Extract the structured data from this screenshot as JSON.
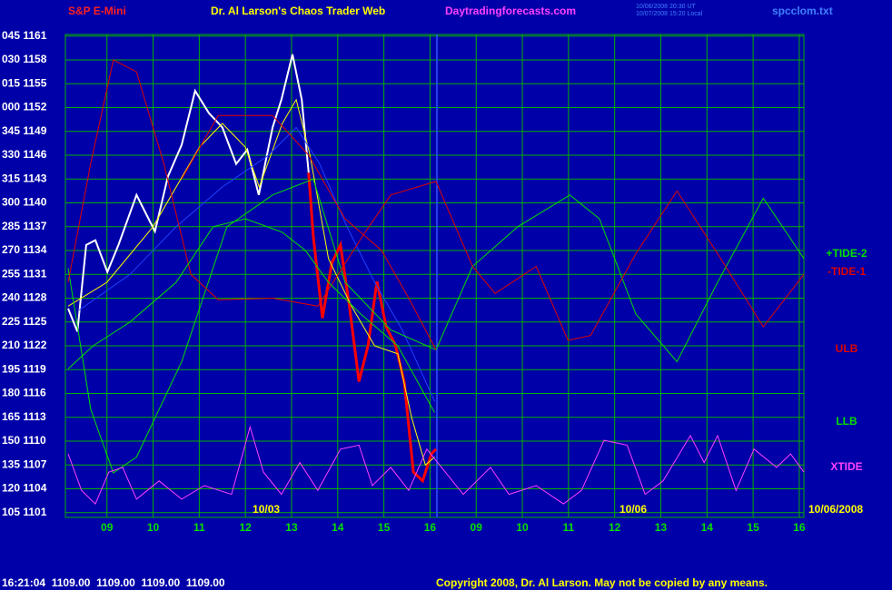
{
  "chart_data": {
    "type": "line",
    "symbol": "S&P E-Mini",
    "title": "Dr. Al Larson's Chaos Trader Web",
    "website": "Daytradingforecasts.com",
    "timestamps": [
      "10/06/2008 20:30 UT",
      "10/07/2008 15:20 Local"
    ],
    "file": "spcclom.txt",
    "status": "16:21:04  1109.00  1109.00  1109.00  1109.00",
    "copyright": "Copyright 2008, Dr. Al Larson. May not be copied by any means.",
    "date_labels": [
      {
        "text": "10/03",
        "x": 3.45
      },
      {
        "text": "10/06",
        "x": 11.4
      }
    ],
    "end_date": "10/06/2008",
    "grid": true,
    "grid_color": "#00b000",
    "background": "#0000a8",
    "xlim": [
      -0.9,
      15.1
    ],
    "ylim": [
      1100.4,
      1161.2
    ],
    "xticks": [
      {
        "value": 0,
        "label": "09"
      },
      {
        "value": 1,
        "label": "10"
      },
      {
        "value": 2,
        "label": "11"
      },
      {
        "value": 3,
        "label": "12"
      },
      {
        "value": 4,
        "label": "13"
      },
      {
        "value": 5,
        "label": "14"
      },
      {
        "value": 6,
        "label": "15"
      },
      {
        "value": 7,
        "label": "16"
      },
      {
        "value": 8,
        "label": "09"
      },
      {
        "value": 9,
        "label": "10"
      },
      {
        "value": 10,
        "label": "11"
      },
      {
        "value": 11,
        "label": "12"
      },
      {
        "value": 12,
        "label": "13"
      },
      {
        "value": 13,
        "label": "14"
      },
      {
        "value": 14,
        "label": "15"
      },
      {
        "value": 15,
        "label": "16"
      }
    ],
    "yticks": [
      {
        "value": 1161,
        "label": "045 1161"
      },
      {
        "value": 1158,
        "label": "030 1158"
      },
      {
        "value": 1155,
        "label": "015 1155"
      },
      {
        "value": 1152,
        "label": "000 1152"
      },
      {
        "value": 1149,
        "label": "345 1149"
      },
      {
        "value": 1146,
        "label": "330 1146"
      },
      {
        "value": 1143,
        "label": "315 1143"
      },
      {
        "value": 1140,
        "label": "300 1140"
      },
      {
        "value": 1137,
        "label": "285 1137"
      },
      {
        "value": 1134,
        "label": "270 1134"
      },
      {
        "value": 1131,
        "label": "255 1131"
      },
      {
        "value": 1128,
        "label": "240 1128"
      },
      {
        "value": 1125,
        "label": "225 1125"
      },
      {
        "value": 1122,
        "label": "210 1122"
      },
      {
        "value": 1119,
        "label": "195 1119"
      },
      {
        "value": 1116,
        "label": "180 1116"
      },
      {
        "value": 1113,
        "label": "165 1113"
      },
      {
        "value": 1110,
        "label": "150 1110"
      },
      {
        "value": 1107,
        "label": "135 1107"
      },
      {
        "value": 1104,
        "label": "120 1104"
      },
      {
        "value": 1101,
        "label": "105 1101"
      }
    ],
    "series": [
      {
        "color": "#ffffff",
        "width": 2,
        "x": [
          -0.84,
          -0.64,
          -0.45,
          -0.25,
          0.01,
          0.25,
          0.64,
          1.04,
          1.32,
          1.62,
          1.91,
          2.21,
          2.5,
          2.8,
          3.04,
          3.29,
          3.59,
          3.78,
          4.02,
          4.22,
          4.37
        ],
        "values": [
          1126.7,
          1123.8,
          1134.7,
          1135.3,
          1131.3,
          1134.7,
          1141,
          1136.4,
          1143.3,
          1147.3,
          1154.1,
          1151.3,
          1149.5,
          1144.9,
          1146.7,
          1141,
          1149.5,
          1153,
          1158.7,
          1153,
          1143.8
        ]
      },
      {
        "color": "#ff0000",
        "width": 3,
        "x": [
          4.37,
          4.47,
          4.67,
          4.87,
          5.06,
          5.26,
          5.46,
          5.66,
          5.85,
          6.05,
          6.25,
          6.44,
          6.64,
          6.84,
          7.03,
          7.13
        ],
        "values": [
          1143.8,
          1135.8,
          1125.5,
          1132.4,
          1134.7,
          1126.7,
          1117.5,
          1122.1,
          1130.1,
          1124.4,
          1122.1,
          1117.5,
          1106.1,
          1105,
          1108.4,
          1109
        ]
      },
      {
        "color": "#ffff00",
        "width": 1,
        "x": [
          -0.84,
          0,
          1,
          2,
          2.5,
          3,
          3.3,
          3.8,
          4.1,
          4.4,
          4.8,
          5.3,
          5.8,
          6.3,
          6.6,
          6.9,
          7.1
        ],
        "values": [
          1127,
          1130,
          1137,
          1147,
          1150,
          1147,
          1142,
          1150,
          1153,
          1146,
          1133,
          1127,
          1122,
          1121,
          1113,
          1107,
          1108
        ]
      },
      {
        "color": "#2040ff",
        "width": 1,
        "x": [
          -0.6,
          0.5,
          1.5,
          2.5,
          3.5,
          4.1,
          4.6,
          5.2,
          5.8,
          6.4,
          7.1
        ],
        "values": [
          1126.5,
          1131,
          1137,
          1142,
          1146,
          1149.5,
          1145,
          1137,
          1130,
          1124,
          1115
        ]
      },
      {
        "name": "+TIDE-2",
        "color": "#00e000",
        "width": 1,
        "x": [
          -0.84,
          -0.35,
          0.14,
          0.64,
          1.62,
          2.6,
          3.59,
          4.47,
          5.16,
          6.15,
          7.13,
          7.92,
          8.9,
          10.03,
          10.67,
          11.46,
          12.35,
          13.23,
          14.22,
          15.1
        ],
        "values": [
          1131.8,
          1114,
          1106,
          1108,
          1120,
          1137,
          1141,
          1143,
          1130,
          1124,
          1121.5,
          1132,
          1137,
          1141,
          1138,
          1126,
          1120,
          1130,
          1140.6,
          1133
        ]
      },
      {
        "name": "-TIDE-1",
        "color": "#e00000",
        "width": 1,
        "x": [
          -0.84,
          -0.35,
          0.14,
          0.64,
          1.23,
          1.82,
          2.41,
          3.59,
          4.57,
          5.56,
          6.15,
          7.13,
          7.92,
          8.41,
          9.3,
          9.99,
          10.48,
          11.46,
          12.35,
          13.23,
          14.22,
          15.1
        ],
        "values": [
          1130,
          1145,
          1158,
          1156.5,
          1145,
          1131,
          1127.8,
          1128,
          1127,
          1136,
          1141,
          1142.7,
          1132,
          1128.6,
          1132,
          1122.7,
          1123.3,
          1133.6,
          1141.5,
          1133.6,
          1124.4,
          1131
        ]
      },
      {
        "name": "ULB",
        "color": "#e00000",
        "width": 1,
        "x": [
          1.62,
          2.41,
          3.59,
          4.37,
          5.16,
          5.95,
          6.54,
          7.13
        ],
        "values": [
          1143,
          1151,
          1151,
          1146,
          1138,
          1134,
          1128,
          1121.5
        ]
      },
      {
        "name": "LLB",
        "color": "#00e000",
        "width": 1,
        "x": [
          -0.84,
          -0.3,
          0.5,
          1.5,
          2.3,
          3,
          3.8,
          4.3,
          4.8,
          5.5,
          6.3,
          7.1
        ],
        "values": [
          1119.1,
          1122,
          1125,
          1130,
          1137,
          1138,
          1136.3,
          1134,
          1130,
          1126,
          1122,
          1113.6
        ]
      },
      {
        "name": "XTIDE",
        "color": "#ff40ff",
        "width": 1,
        "x": [
          -0.84,
          -0.55,
          -0.25,
          0.04,
          0.34,
          0.64,
          1.13,
          1.62,
          2.11,
          2.7,
          3.1,
          3.39,
          3.78,
          4.18,
          4.57,
          5.06,
          5.46,
          5.75,
          6.15,
          6.54,
          6.93,
          7.33,
          7.72,
          8.31,
          8.71,
          9.3,
          9.89,
          10.28,
          10.77,
          11.27,
          11.66,
          12.05,
          12.64,
          12.94,
          13.23,
          13.63,
          14.02,
          14.51,
          14.81,
          15.1
        ],
        "values": [
          1108.4,
          1103.8,
          1102.1,
          1106.1,
          1106.7,
          1102.7,
          1105,
          1102.7,
          1104.4,
          1103.3,
          1111.8,
          1106.1,
          1103.3,
          1107.3,
          1103.8,
          1109,
          1109.5,
          1104.4,
          1106.7,
          1103.8,
          1109,
          1106.1,
          1103.3,
          1106.7,
          1103.3,
          1104.4,
          1102.1,
          1103.8,
          1110.1,
          1109.5,
          1103.3,
          1105,
          1110.7,
          1107.3,
          1110.7,
          1103.8,
          1109,
          1106.7,
          1108.4,
          1106.1
        ]
      }
    ]
  }
}
